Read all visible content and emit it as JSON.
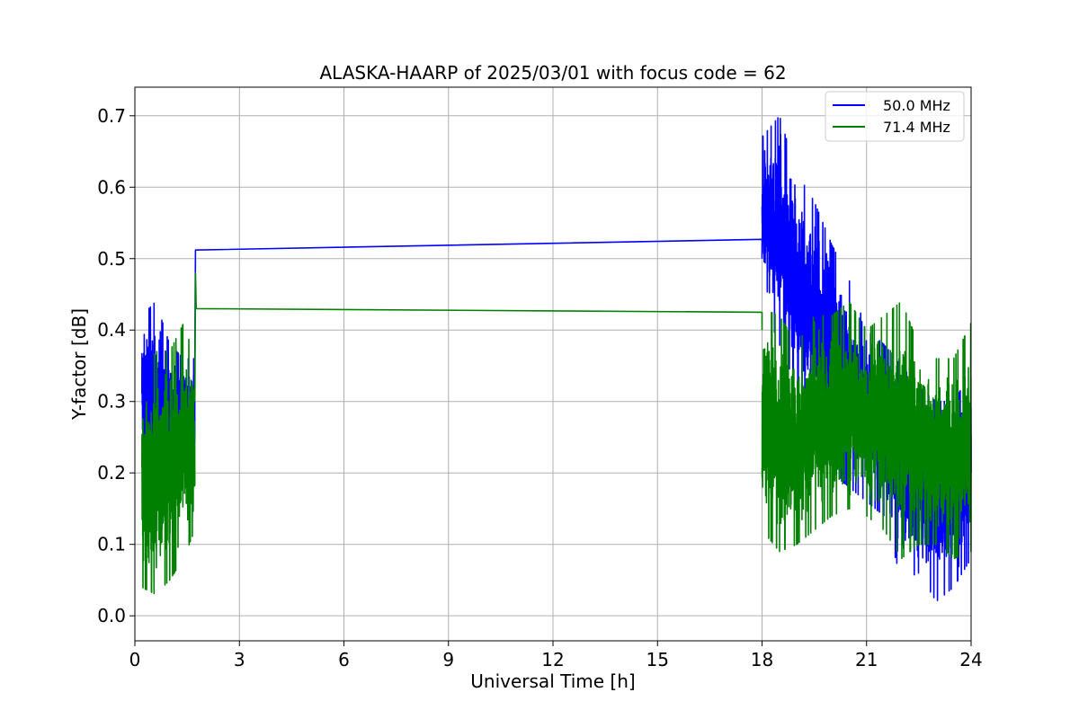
{
  "chart_data": {
    "type": "line",
    "title": "ALASKA-HAARP of 2025/03/01 with focus code = 62",
    "xlabel": "Universal Time [h]",
    "ylabel": "Y-factor [dB]",
    "xlim": [
      0,
      24
    ],
    "ylim": [
      -0.035,
      0.74
    ],
    "xticks": [
      0,
      3,
      6,
      9,
      12,
      15,
      18,
      21,
      24
    ],
    "xtick_labels": [
      "0",
      "3",
      "6",
      "9",
      "12",
      "15",
      "18",
      "21",
      "24"
    ],
    "yticks": [
      0.0,
      0.1,
      0.2,
      0.3,
      0.4,
      0.5,
      0.6,
      0.7
    ],
    "ytick_labels": [
      "0.0",
      "0.1",
      "0.2",
      "0.3",
      "0.4",
      "0.5",
      "0.6",
      "0.7"
    ],
    "grid": true,
    "legend_position": "top-right",
    "series": [
      {
        "name": "50.0 MHz",
        "color": "#0000ff",
        "segments": [
          {
            "x0": 0.2,
            "x1": 1.72,
            "envelope": [
              [
                0.2,
                0.2,
                0.42
              ],
              [
                0.6,
                0.15,
                0.44
              ],
              [
                1.0,
                0.16,
                0.38
              ],
              [
                1.4,
                0.18,
                0.36
              ],
              [
                1.72,
                0.2,
                0.36
              ]
            ]
          },
          {
            "gap_line": [
              [
                1.72,
                0.36
              ],
              [
                1.74,
                0.512
              ],
              [
                18.0,
                0.527
              ],
              [
                18.0,
                0.5
              ]
            ]
          },
          {
            "x0": 18.0,
            "x1": 24.0,
            "envelope": [
              [
                18.0,
                0.44,
                0.67
              ],
              [
                18.5,
                0.38,
                0.7
              ],
              [
                19.0,
                0.32,
                0.62
              ],
              [
                19.5,
                0.26,
                0.58
              ],
              [
                20.0,
                0.2,
                0.52
              ],
              [
                20.5,
                0.18,
                0.47
              ],
              [
                21.0,
                0.16,
                0.4
              ],
              [
                21.5,
                0.14,
                0.38
              ],
              [
                22.0,
                0.05,
                0.35
              ],
              [
                22.5,
                0.06,
                0.32
              ],
              [
                23.0,
                0.02,
                0.3
              ],
              [
                23.5,
                0.04,
                0.3
              ],
              [
                24.0,
                0.08,
                0.34
              ]
            ]
          }
        ]
      },
      {
        "name": "71.4 MHz",
        "color": "#008000",
        "segments": [
          {
            "x0": 0.2,
            "x1": 1.72,
            "envelope": [
              [
                0.2,
                0.04,
                0.33
              ],
              [
                0.6,
                0.03,
                0.37
              ],
              [
                1.0,
                0.05,
                0.37
              ],
              [
                1.4,
                0.08,
                0.41
              ],
              [
                1.72,
                0.12,
                0.36
              ]
            ]
          },
          {
            "gap_line": [
              [
                1.72,
                0.3
              ],
              [
                1.74,
                0.48
              ],
              [
                1.76,
                0.43
              ],
              [
                18.0,
                0.425
              ],
              [
                18.0,
                0.4
              ]
            ]
          },
          {
            "x0": 18.0,
            "x1": 24.0,
            "envelope": [
              [
                18.0,
                0.12,
                0.43
              ],
              [
                18.5,
                0.09,
                0.42
              ],
              [
                19.0,
                0.1,
                0.38
              ],
              [
                19.5,
                0.12,
                0.42
              ],
              [
                20.0,
                0.14,
                0.42
              ],
              [
                20.5,
                0.15,
                0.44
              ],
              [
                21.0,
                0.14,
                0.4
              ],
              [
                21.5,
                0.12,
                0.42
              ],
              [
                22.0,
                0.08,
                0.44
              ],
              [
                22.5,
                0.1,
                0.38
              ],
              [
                23.0,
                0.1,
                0.36
              ],
              [
                23.5,
                0.08,
                0.36
              ],
              [
                24.0,
                0.09,
                0.41
              ]
            ]
          }
        ]
      }
    ]
  }
}
